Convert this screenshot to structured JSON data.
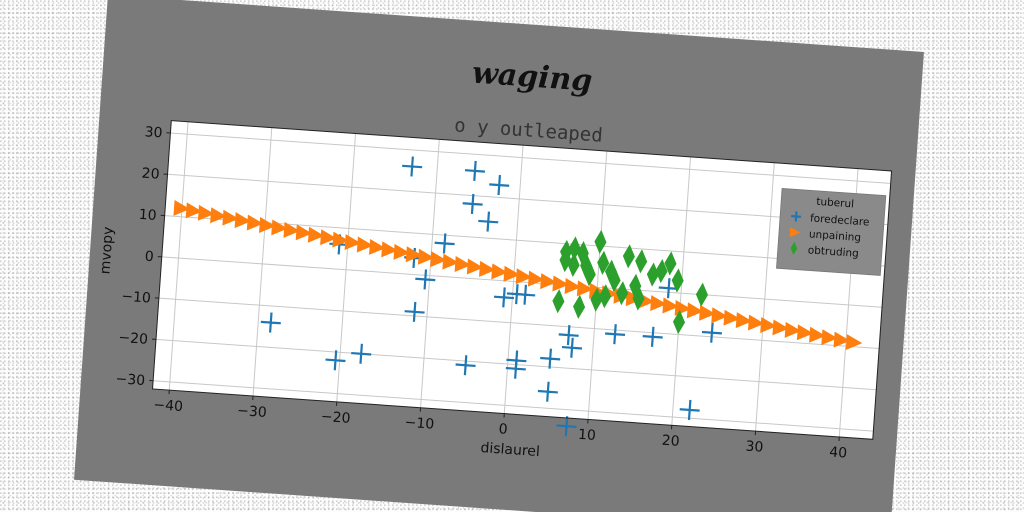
{
  "figure": {
    "suptitle": "waging",
    "background": "#7a7a7a",
    "axes_background": "#ffffff",
    "grid_color": "#c8c8c8"
  },
  "chart_data": {
    "type": "scatter",
    "title": "o y outleaped",
    "xlabel": "dislaurel",
    "ylabel": "mvopy",
    "xlim": [
      -42,
      44
    ],
    "ylim": [
      -32,
      33
    ],
    "xticks": [
      -40,
      -30,
      -20,
      -10,
      0,
      10,
      20,
      30,
      40
    ],
    "yticks": [
      -30,
      -20,
      -10,
      0,
      10,
      20,
      30
    ],
    "grid": true,
    "legend": {
      "title": "tuberul",
      "placement": "top-right"
    },
    "series": [
      {
        "name": "foredeclare",
        "marker": "plus",
        "color": "#1f77b4",
        "points": [
          [
            -13,
            26
          ],
          [
            -5.5,
            26
          ],
          [
            -2.5,
            23
          ],
          [
            -5.5,
            18
          ],
          [
            -3.5,
            14
          ],
          [
            -8.5,
            8
          ],
          [
            -21,
            6
          ],
          [
            -12,
            4
          ],
          [
            -10.5,
            -1
          ],
          [
            -11.5,
            -9
          ],
          [
            -1,
            -4
          ],
          [
            0.5,
            -3
          ],
          [
            1.5,
            -3
          ],
          [
            -28.5,
            -14
          ],
          [
            -17.5,
            -20
          ],
          [
            -20.5,
            -22
          ],
          [
            -5,
            -21
          ],
          [
            1,
            -19
          ],
          [
            1,
            -21
          ],
          [
            5,
            -18
          ],
          [
            5,
            -26
          ],
          [
            7,
            -12
          ],
          [
            7.5,
            -15
          ],
          [
            7.5,
            -34
          ],
          [
            12.5,
            -11
          ],
          [
            17,
            -11
          ],
          [
            18.5,
            1
          ],
          [
            22,
            -28
          ],
          [
            24,
            -9
          ]
        ]
      },
      {
        "name": "unpaining",
        "marker": "triangle-right",
        "color": "#ff7f0e",
        "line": {
          "x_from": -40,
          "x_to": 41,
          "y_at_x_from": 12,
          "y_at_x_to": -9,
          "count": 56
        }
      },
      {
        "name": "obtruding",
        "marker": "thin-diamond",
        "color": "#2ca02c",
        "points": [
          [
            6,
            8
          ],
          [
            7,
            9
          ],
          [
            8,
            8
          ],
          [
            6,
            6
          ],
          [
            7,
            5
          ],
          [
            8.5,
            5
          ],
          [
            10,
            11
          ],
          [
            10.5,
            6
          ],
          [
            11.5,
            4
          ],
          [
            12,
            2
          ],
          [
            13.5,
            8
          ],
          [
            15,
            7
          ],
          [
            16.5,
            4
          ],
          [
            17.5,
            5
          ],
          [
            18.5,
            7
          ],
          [
            19.5,
            3
          ],
          [
            14.5,
            1
          ],
          [
            15,
            -2
          ],
          [
            10,
            -3
          ],
          [
            11,
            -2
          ],
          [
            8,
            -5
          ],
          [
            5.5,
            -4
          ],
          [
            20,
            -7
          ],
          [
            22.5,
            0
          ],
          [
            9,
            3
          ],
          [
            13,
            -1
          ]
        ]
      }
    ]
  }
}
